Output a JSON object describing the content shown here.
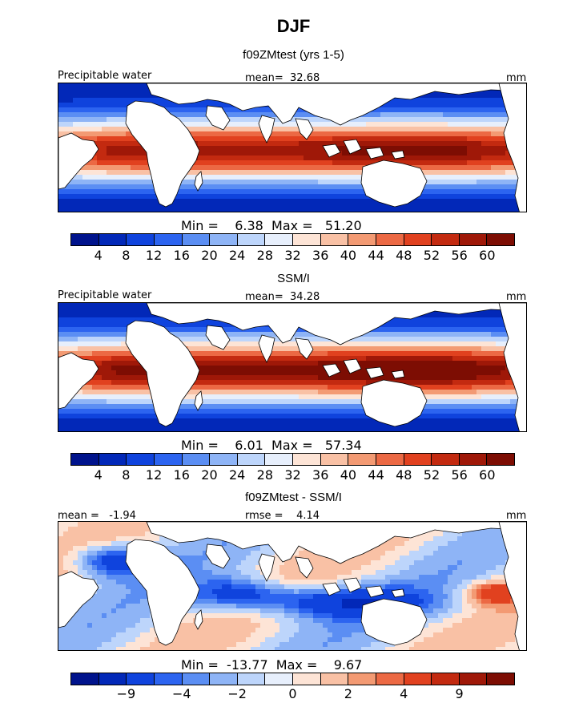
{
  "title": "DJF",
  "colors": {
    "abs_scale": [
      "#00138c",
      "#0228b8",
      "#0f43dd",
      "#2c64f0",
      "#5b8ef3",
      "#8eb4f6",
      "#bdd5fb",
      "#e7effc",
      "#fde4d6",
      "#f9c1a5",
      "#f39a73",
      "#ec6944",
      "#e1411f",
      "#c32a10",
      "#9f1808",
      "#7d0d03"
    ],
    "diff_scale": [
      "#00138c",
      "#0228b8",
      "#0f43dd",
      "#2c64f0",
      "#5b8ef3",
      "#8eb4f6",
      "#bdd5fb",
      "#e7effc",
      "#fde4d6",
      "#f9c1a5",
      "#f39a73",
      "#ec6944",
      "#e1411f",
      "#c32a10",
      "#9f1808",
      "#7d0d03"
    ],
    "land": "#ffffff",
    "coast": "#000000"
  },
  "panels": [
    {
      "subtitle": "f09ZMtest (yrs 1-5)",
      "left_label": "Precipitable water",
      "center_label": "mean=  32.68",
      "units": "mm",
      "stats": "Min =    6.38  Max =   51.20",
      "ticks": [
        "4",
        "8",
        "12",
        "16",
        "20",
        "24",
        "28",
        "32",
        "36",
        "40",
        "44",
        "48",
        "52",
        "56",
        "60"
      ],
      "field": "model"
    },
    {
      "subtitle": "SSM/I",
      "left_label": "Precipitable water",
      "center_label": "mean=  34.28",
      "units": "mm",
      "stats": "Min =    6.01  Max =   57.34",
      "ticks": [
        "4",
        "8",
        "12",
        "16",
        "20",
        "24",
        "28",
        "32",
        "36",
        "40",
        "44",
        "48",
        "52",
        "56",
        "60"
      ],
      "field": "obs"
    },
    {
      "subtitle": "f09ZMtest - SSM/I",
      "left_label": "mean =   -1.94",
      "center_label": "rmse =    4.14",
      "units": "mm",
      "stats": "Min =  -13.77  Max =    9.67",
      "ticks": [
        "-9",
        "-4",
        "-2",
        "0",
        "2",
        "4",
        "9"
      ],
      "field": "diff"
    }
  ],
  "chart_data": [
    {
      "type": "heatmap",
      "title": "f09ZMtest (yrs 1-5)",
      "variable": "Precipitable water",
      "units": "mm",
      "mean": 32.68,
      "min": 6.38,
      "max": 51.2,
      "levels": [
        4,
        8,
        12,
        16,
        20,
        24,
        28,
        32,
        36,
        40,
        44,
        48,
        52,
        56,
        60
      ],
      "xlim": [
        -45,
        110
      ],
      "note": "tropical moist band peaking over maritime continent / west Pacific, dry subtropics"
    },
    {
      "type": "heatmap",
      "title": "SSM/I",
      "variable": "Precipitable water",
      "units": "mm",
      "mean": 34.28,
      "min": 6.01,
      "max": 57.34,
      "levels": [
        4,
        8,
        12,
        16,
        20,
        24,
        28,
        32,
        36,
        40,
        44,
        48,
        52,
        56,
        60
      ]
    },
    {
      "type": "heatmap",
      "title": "f09ZMtest - SSM/I",
      "variable": "Precipitable water difference",
      "units": "mm",
      "mean": -1.94,
      "rmse": 4.14,
      "min": -13.77,
      "max": 9.67,
      "levels": [
        -9,
        -4,
        -2,
        0,
        2,
        4,
        9
      ]
    }
  ]
}
